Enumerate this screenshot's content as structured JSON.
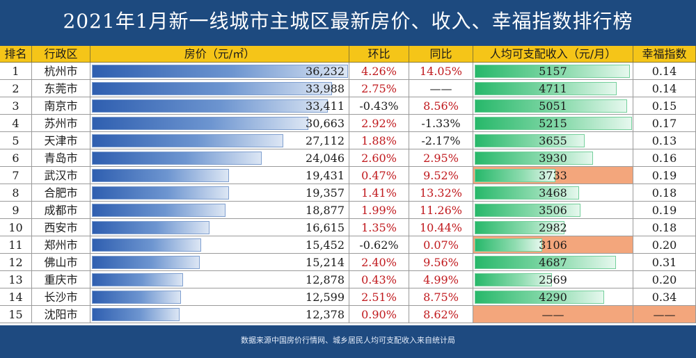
{
  "title": "2021年1月新一线城市主城区最新房价、收入、幸福指数排行榜",
  "footer": "数据来源中国房价行情网、城乡居民人均可支配收入来自统计局",
  "colors": {
    "header_bg": "#f5c518",
    "page_bg": "#1e4a80",
    "up": "#c0181c",
    "down": "#1a1a1a",
    "highlight": "#f3a67c"
  },
  "chart_data": {
    "type": "table",
    "columns": [
      "排名",
      "行政区",
      "房价（元/㎡）",
      "环比",
      "同比",
      "人均可支配收入（元/月）",
      "幸福指数"
    ],
    "price_max": 36232,
    "income_max": 5215,
    "rows": [
      {
        "rank": "1",
        "city": "杭州市",
        "price": 36232,
        "price_text": "36,232",
        "mom": "4.26%",
        "yoy": "14.05%",
        "income": 5157,
        "income_text": "5157",
        "happiness": "0.14",
        "income_highlight": false
      },
      {
        "rank": "2",
        "city": "东莞市",
        "price": 33988,
        "price_text": "33,988",
        "mom": "2.75%",
        "yoy": "——",
        "income": 4711,
        "income_text": "4711",
        "happiness": "0.14",
        "income_highlight": false
      },
      {
        "rank": "3",
        "city": "南京市",
        "price": 33411,
        "price_text": "33,411",
        "mom": "-0.43%",
        "yoy": "8.56%",
        "income": 5051,
        "income_text": "5051",
        "happiness": "0.15",
        "income_highlight": false
      },
      {
        "rank": "4",
        "city": "苏州市",
        "price": 30663,
        "price_text": "30,663",
        "mom": "2.92%",
        "yoy": "-1.33%",
        "income": 5215,
        "income_text": "5215",
        "happiness": "0.17",
        "income_highlight": false
      },
      {
        "rank": "5",
        "city": "天津市",
        "price": 27112,
        "price_text": "27,112",
        "mom": "1.88%",
        "yoy": "-2.17%",
        "income": 3655,
        "income_text": "3655",
        "happiness": "0.13",
        "income_highlight": false
      },
      {
        "rank": "6",
        "city": "青岛市",
        "price": 24046,
        "price_text": "24,046",
        "mom": "2.60%",
        "yoy": "2.95%",
        "income": 3930,
        "income_text": "3930",
        "happiness": "0.16",
        "income_highlight": false
      },
      {
        "rank": "7",
        "city": "武汉市",
        "price": 19431,
        "price_text": "19,431",
        "mom": "0.47%",
        "yoy": "9.52%",
        "income": 3733,
        "income_text": "3733",
        "happiness": "0.19",
        "income_highlight": true
      },
      {
        "rank": "8",
        "city": "合肥市",
        "price": 19357,
        "price_text": "19,357",
        "mom": "1.41%",
        "yoy": "13.32%",
        "income": 3468,
        "income_text": "3468",
        "happiness": "0.18",
        "income_highlight": false
      },
      {
        "rank": "9",
        "city": "成都市",
        "price": 18877,
        "price_text": "18,877",
        "mom": "1.99%",
        "yoy": "11.26%",
        "income": 3506,
        "income_text": "3506",
        "happiness": "0.19",
        "income_highlight": false
      },
      {
        "rank": "10",
        "city": "西安市",
        "price": 16615,
        "price_text": "16,615",
        "mom": "1.35%",
        "yoy": "10.44%",
        "income": 2982,
        "income_text": "2982",
        "happiness": "0.18",
        "income_highlight": false
      },
      {
        "rank": "11",
        "city": "郑州市",
        "price": 15452,
        "price_text": "15,452",
        "mom": "-0.62%",
        "yoy": "0.07%",
        "income": 3106,
        "income_text": "3106",
        "happiness": "0.20",
        "income_highlight": true
      },
      {
        "rank": "12",
        "city": "佛山市",
        "price": 15214,
        "price_text": "15,214",
        "mom": "2.40%",
        "yoy": "9.56%",
        "income": 4687,
        "income_text": "4687",
        "happiness": "0.31",
        "income_highlight": false
      },
      {
        "rank": "13",
        "city": "重庆市",
        "price": 12878,
        "price_text": "12,878",
        "mom": "0.43%",
        "yoy": "4.99%",
        "income": 2569,
        "income_text": "2569",
        "happiness": "0.20",
        "income_highlight": false
      },
      {
        "rank": "14",
        "city": "长沙市",
        "price": 12599,
        "price_text": "12,599",
        "mom": "2.51%",
        "yoy": "8.75%",
        "income": 4290,
        "income_text": "4290",
        "happiness": "0.34",
        "income_highlight": false
      },
      {
        "rank": "15",
        "city": "沈阳市",
        "price": 12378,
        "price_text": "12,378",
        "mom": "0.90%",
        "yoy": "8.62%",
        "income": null,
        "income_text": "——",
        "happiness": "——",
        "income_highlight": true
      }
    ]
  }
}
